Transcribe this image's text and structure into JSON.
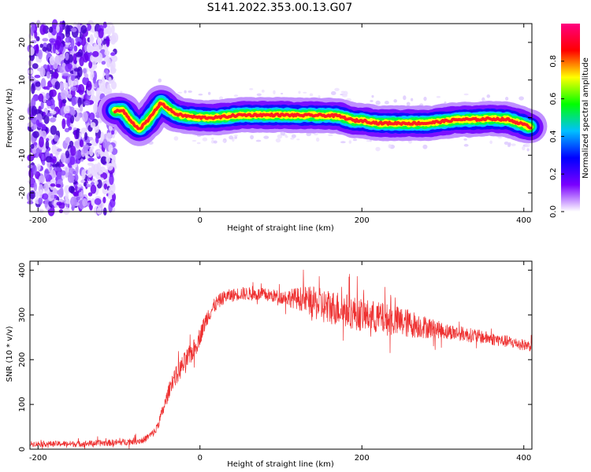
{
  "title": "S141.2022.353.00.13.G07",
  "chart_data": [
    {
      "type": "heatmap",
      "xlabel": "Height of straight line (km)",
      "ylabel": "Frequency (Hz)",
      "xlim": [
        -210,
        410
      ],
      "ylim": [
        -25,
        25
      ],
      "xticks": [
        -200,
        0,
        200,
        400
      ],
      "yticks": [
        -20,
        -10,
        0,
        10,
        20
      ],
      "colorbar": {
        "label": "Normalized spectral amplitude",
        "range": [
          0,
          1
        ],
        "ticks": [
          0.0,
          0.2,
          0.4,
          0.6,
          0.8
        ],
        "colors": [
          "#ffffff",
          "#7a00ff",
          "#0000ff",
          "#00c0ff",
          "#00ff00",
          "#ffff00",
          "#ff0000",
          "#ff0080"
        ]
      },
      "ridge": {
        "x": [
          -105,
          -95,
          -85,
          -75,
          -65,
          -55,
          -48,
          -40,
          -30,
          -20,
          0,
          20,
          50,
          80,
          100,
          130,
          150,
          170,
          190,
          200,
          220,
          240,
          260,
          280,
          300,
          320,
          340,
          360,
          380,
          395,
          408
        ],
        "y": [
          1.8,
          1.8,
          -1,
          -3,
          -1,
          2,
          4,
          2.5,
          1.0,
          0.5,
          0,
          0,
          0.7,
          0.7,
          0.7,
          0.6,
          0.6,
          0.5,
          -0.8,
          -0.8,
          -1.5,
          -1.5,
          -1.5,
          -1.5,
          -1.0,
          -0.5,
          -0.5,
          -0.3,
          -0.5,
          -1.5,
          -2.5
        ]
      }
    },
    {
      "type": "line",
      "xlabel": "Height of straight line (km)",
      "ylabel": "SNR (10 * v/v)",
      "xlim": [
        -210,
        410
      ],
      "ylim": [
        0,
        420
      ],
      "xticks": [
        -200,
        0,
        200,
        400
      ],
      "yticks": [
        0,
        100,
        200,
        300,
        400
      ],
      "color": "#ee3030",
      "envelope": {
        "x": [
          -210,
          -150,
          -100,
          -70,
          -55,
          -45,
          -35,
          -20,
          -5,
          10,
          20,
          30,
          50,
          80,
          100,
          130,
          150,
          170,
          200,
          230,
          260,
          300,
          350,
          380,
          410
        ],
        "y": [
          12,
          12,
          15,
          20,
          40,
          90,
          150,
          190,
          230,
          300,
          325,
          340,
          348,
          345,
          340,
          335,
          320,
          315,
          300,
          290,
          280,
          265,
          250,
          240,
          230
        ]
      },
      "noise": {
        "x": [
          -210,
          -60,
          -20,
          30,
          100,
          150,
          250,
          300,
          410
        ],
        "amp": [
          6,
          8,
          25,
          15,
          15,
          40,
          35,
          18,
          12
        ]
      }
    }
  ]
}
